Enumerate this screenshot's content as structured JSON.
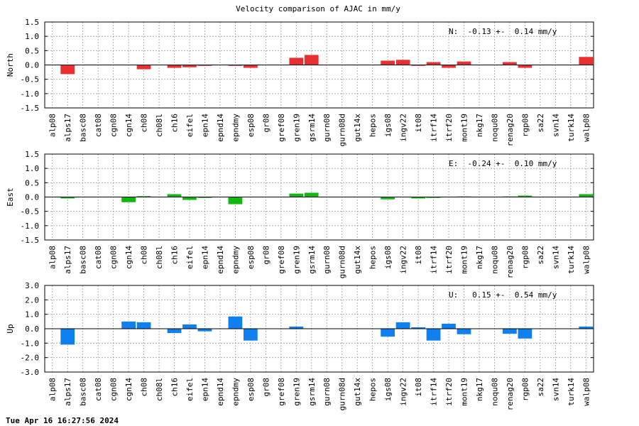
{
  "page": {
    "title": "Velocity comparison of AJAC in mm/y",
    "timestamp": "Tue Apr 16 16:27:56 2024"
  },
  "chart_data": {
    "type": "bar",
    "categories": [
      "alp08",
      "alps17",
      "basc08",
      "cat08",
      "cgn08",
      "cgn14",
      "ch08",
      "ch08l",
      "ch16",
      "eifel",
      "epn14",
      "epnd14",
      "epndmy",
      "esp08",
      "gr08",
      "gref08",
      "gren19",
      "gsrm14",
      "gurn08",
      "gurn08d",
      "gut14x",
      "hepos",
      "igs08",
      "ingv22",
      "it08",
      "itrf14",
      "itrf20",
      "mont19",
      "nkg17",
      "noqu08",
      "renag20",
      "rgp08",
      "sa22",
      "svn14",
      "turk14",
      "walp08"
    ],
    "panels": [
      {
        "ylabel": "North",
        "color": "#e83030",
        "ylim": [
          -1.5,
          1.5
        ],
        "yticks": [
          "1.5",
          "1.0",
          "0.5",
          "0.0",
          "-0.5",
          "-1.0",
          "-1.5"
        ],
        "annotation": "N:  -0.13 +-  0.14 mm/y",
        "values": [
          0,
          -0.32,
          0,
          0,
          0,
          0,
          -0.15,
          0,
          -0.1,
          -0.08,
          -0.03,
          0,
          -0.03,
          -0.1,
          0,
          0,
          0.25,
          0.35,
          0,
          0,
          0,
          0,
          0.15,
          0.18,
          -0.03,
          0.1,
          -0.1,
          0.12,
          0,
          0,
          0.1,
          -0.1,
          0,
          0,
          0,
          0.28
        ]
      },
      {
        "ylabel": "East",
        "color": "#10b810",
        "ylim": [
          -1.5,
          1.5
        ],
        "yticks": [
          "1.5",
          "1.0",
          "0.5",
          "0.0",
          "-0.5",
          "-1.0",
          "-1.5"
        ],
        "annotation": "E:  -0.24 +-  0.10 mm/y",
        "values": [
          0,
          -0.05,
          0,
          0,
          0,
          -0.18,
          0.03,
          0,
          0.1,
          -0.1,
          -0.03,
          0,
          -0.25,
          0,
          0,
          0,
          0.12,
          0.15,
          0,
          0,
          0,
          0,
          -0.08,
          0,
          -0.05,
          -0.03,
          0,
          0.02,
          0,
          0,
          0.02,
          0.05,
          0,
          0,
          0,
          0.1
        ]
      },
      {
        "ylabel": "Up",
        "color": "#1080f0",
        "ylim": [
          -3.0,
          3.0
        ],
        "yticks": [
          "3.0",
          "2.0",
          "1.0",
          "0.0",
          "-1.0",
          "-2.0",
          "-3.0"
        ],
        "annotation": "U:   0.15 +-  0.54 mm/y",
        "values": [
          0,
          -1.1,
          0,
          0,
          0,
          0.5,
          0.45,
          0,
          -0.3,
          0.3,
          -0.18,
          0,
          0.85,
          -0.82,
          0,
          0,
          0.15,
          0,
          0,
          0,
          0,
          0,
          -0.55,
          0.45,
          0.1,
          -0.82,
          0.35,
          -0.38,
          0,
          0,
          -0.35,
          -0.68,
          0,
          0,
          0,
          0.15
        ]
      }
    ]
  }
}
